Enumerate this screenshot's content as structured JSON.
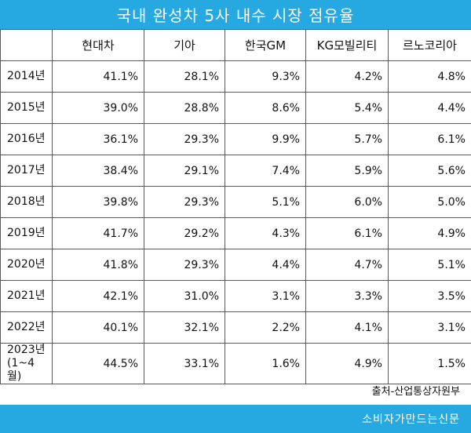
{
  "title": "국내 완성차 5사 내수 시장 점유율",
  "columns": [
    "",
    "현대차",
    "기아",
    "한국GM",
    "KG모빌리티",
    "르노코리아"
  ],
  "rows": [
    {
      "year": "2014년",
      "values": [
        "41.1%",
        "28.1%",
        "9.3%",
        "4.2%",
        "4.8%"
      ]
    },
    {
      "year": "2015년",
      "values": [
        "39.0%",
        "28.8%",
        "8.6%",
        "5.4%",
        "4.4%"
      ]
    },
    {
      "year": "2016년",
      "values": [
        "36.1%",
        "29.3%",
        "9.9%",
        "5.7%",
        "6.1%"
      ]
    },
    {
      "year": "2017년",
      "values": [
        "38.4%",
        "29.1%",
        "7.4%",
        "5.9%",
        "5.6%"
      ]
    },
    {
      "year": "2018년",
      "values": [
        "39.8%",
        "29.3%",
        "5.1%",
        "6.0%",
        "5.0%"
      ]
    },
    {
      "year": "2019년",
      "values": [
        "41.7%",
        "29.2%",
        "4.3%",
        "6.1%",
        "4.9%"
      ]
    },
    {
      "year": "2020년",
      "values": [
        "41.8%",
        "29.3%",
        "4.4%",
        "4.7%",
        "5.1%"
      ]
    },
    {
      "year": "2021년",
      "values": [
        "42.1%",
        "31.0%",
        "3.1%",
        "3.3%",
        "3.5%"
      ]
    },
    {
      "year": "2022년",
      "values": [
        "40.1%",
        "32.1%",
        "2.2%",
        "4.1%",
        "3.1%"
      ]
    },
    {
      "year": "2023년",
      "year_sub": "(1~4월)",
      "values": [
        "44.5%",
        "33.1%",
        "1.6%",
        "4.9%",
        "1.5%"
      ]
    }
  ],
  "source": "출처-산업통상자원부",
  "footer": "소비자가만드는신문",
  "colors": {
    "accent": "#25a9e0",
    "border": "#5a5a5a"
  }
}
